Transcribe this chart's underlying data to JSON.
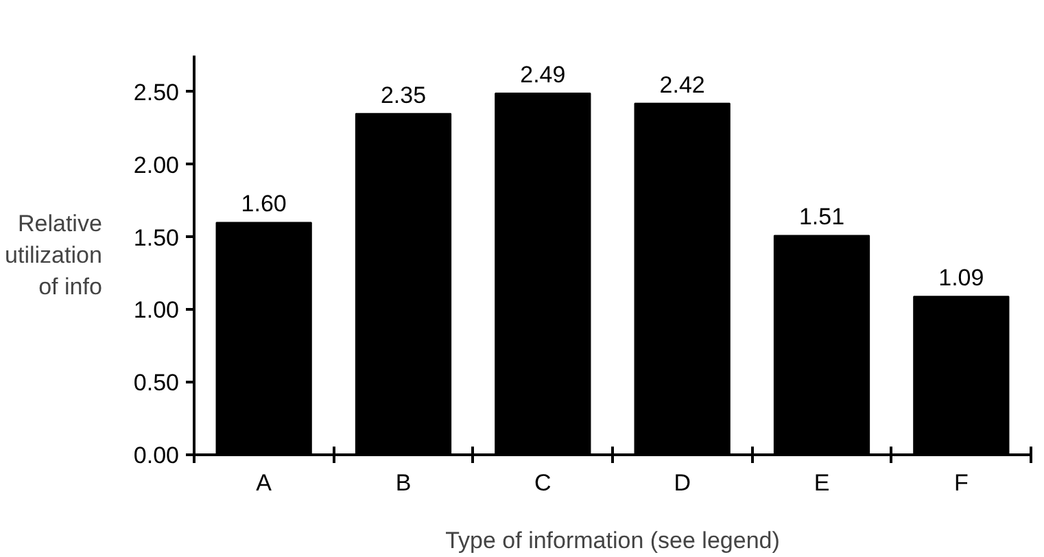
{
  "chart_data": {
    "type": "bar",
    "xlabel": "Type of information (see legend)",
    "ylabel": "Relative\nutilization\nof info",
    "categories": [
      "A",
      "B",
      "C",
      "D",
      "E",
      "F"
    ],
    "values": [
      1.6,
      2.35,
      2.49,
      2.42,
      1.51,
      1.09
    ],
    "value_labels": [
      "1.60",
      "2.35",
      "2.49",
      "2.42",
      "1.51",
      "1.09"
    ],
    "color": "#000000",
    "grid": false,
    "ylim": [
      0,
      2.75
    ],
    "yticks": [
      {
        "value": 0,
        "label": "0.00"
      },
      {
        "value": 0.5,
        "label": "0.50"
      },
      {
        "value": 1,
        "label": "1.00"
      },
      {
        "value": 1.5,
        "label": "1.50"
      },
      {
        "value": 2,
        "label": "2.00"
      },
      {
        "value": 2.5,
        "label": "2.50"
      }
    ]
  }
}
